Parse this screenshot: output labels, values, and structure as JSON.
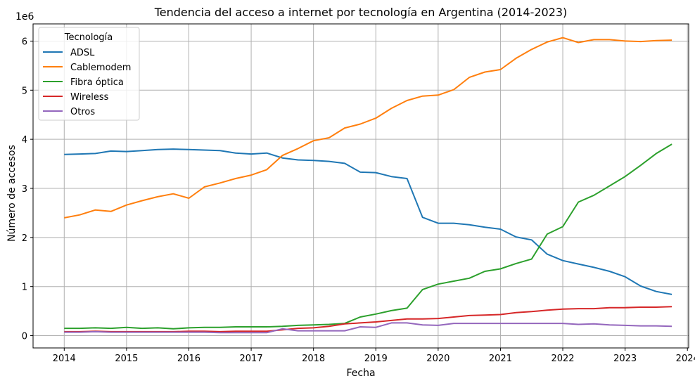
{
  "chart_data": {
    "type": "line",
    "title": "Tendencia del acceso a internet por tecnología en Argentina (2014-2023)",
    "xlabel": "Fecha",
    "ylabel": "Número de accesos",
    "y_offset_text": "1e6",
    "xlim": [
      2013.5,
      2024.02
    ],
    "ylim": [
      -0.25,
      6.35
    ],
    "x_ticks": [
      2014,
      2015,
      2016,
      2017,
      2018,
      2019,
      2020,
      2021,
      2022,
      2023,
      2024
    ],
    "x_tick_labels": [
      "2014",
      "2015",
      "2016",
      "2017",
      "2018",
      "2019",
      "2020",
      "2021",
      "2022",
      "2023",
      "2024"
    ],
    "y_ticks": [
      0,
      1,
      2,
      3,
      4,
      5,
      6
    ],
    "y_tick_labels": [
      "0",
      "1",
      "2",
      "3",
      "4",
      "5",
      "6"
    ],
    "grid": true,
    "legend": {
      "title": "Tecnología",
      "position": "upper-left"
    },
    "x": [
      2014.0,
      2014.25,
      2014.5,
      2014.75,
      2015.0,
      2015.25,
      2015.5,
      2015.75,
      2016.0,
      2016.25,
      2016.5,
      2016.75,
      2017.0,
      2017.25,
      2017.5,
      2017.75,
      2018.0,
      2018.25,
      2018.5,
      2018.75,
      2019.0,
      2019.25,
      2019.5,
      2019.75,
      2020.0,
      2020.25,
      2020.5,
      2020.75,
      2021.0,
      2021.25,
      2021.5,
      2021.75,
      2022.0,
      2022.25,
      2022.5,
      2022.75,
      2023.0,
      2023.25,
      2023.5,
      2023.75
    ],
    "series": [
      {
        "name": "ADSL",
        "color": "#1f77b4",
        "values": [
          3.69,
          3.7,
          3.71,
          3.76,
          3.75,
          3.77,
          3.79,
          3.8,
          3.79,
          3.78,
          3.77,
          3.72,
          3.7,
          3.72,
          3.62,
          3.58,
          3.57,
          3.55,
          3.51,
          3.33,
          3.32,
          3.24,
          3.2,
          2.41,
          2.29,
          2.29,
          2.26,
          2.21,
          2.17,
          2.01,
          1.95,
          1.66,
          1.53,
          1.46,
          1.39,
          1.31,
          1.2,
          1.01,
          0.9,
          0.84
        ]
      },
      {
        "name": "Cablemodem",
        "color": "#ff7f0e",
        "values": [
          2.4,
          2.46,
          2.56,
          2.53,
          2.66,
          2.75,
          2.83,
          2.89,
          2.8,
          3.03,
          3.11,
          3.2,
          3.27,
          3.38,
          3.67,
          3.81,
          3.97,
          4.03,
          4.23,
          4.31,
          4.43,
          4.63,
          4.79,
          4.88,
          4.9,
          5.01,
          5.26,
          5.37,
          5.42,
          5.65,
          5.83,
          5.98,
          6.07,
          5.97,
          6.03,
          6.03,
          6.0,
          5.99,
          6.01,
          6.02
        ]
      },
      {
        "name": "Fibra óptica",
        "color": "#2ca02c",
        "values": [
          0.15,
          0.15,
          0.16,
          0.15,
          0.17,
          0.15,
          0.16,
          0.14,
          0.16,
          0.17,
          0.17,
          0.18,
          0.18,
          0.18,
          0.19,
          0.21,
          0.22,
          0.23,
          0.25,
          0.38,
          0.44,
          0.51,
          0.56,
          0.94,
          1.05,
          1.11,
          1.17,
          1.31,
          1.36,
          1.47,
          1.56,
          2.07,
          2.22,
          2.72,
          2.86,
          3.05,
          3.24,
          3.47,
          3.71,
          3.9
        ]
      },
      {
        "name": "Wireless",
        "color": "#d62728",
        "values": [
          0.08,
          0.08,
          0.09,
          0.08,
          0.08,
          0.08,
          0.08,
          0.08,
          0.09,
          0.09,
          0.08,
          0.09,
          0.09,
          0.09,
          0.12,
          0.15,
          0.16,
          0.19,
          0.24,
          0.26,
          0.28,
          0.31,
          0.34,
          0.34,
          0.35,
          0.38,
          0.41,
          0.42,
          0.43,
          0.47,
          0.49,
          0.52,
          0.54,
          0.55,
          0.55,
          0.57,
          0.57,
          0.58,
          0.58,
          0.59
        ]
      },
      {
        "name": "Otros",
        "color": "#9467bd",
        "values": [
          0.07,
          0.07,
          0.08,
          0.07,
          0.07,
          0.07,
          0.07,
          0.07,
          0.07,
          0.07,
          0.06,
          0.06,
          0.06,
          0.06,
          0.14,
          0.1,
          0.1,
          0.1,
          0.1,
          0.18,
          0.17,
          0.26,
          0.26,
          0.22,
          0.21,
          0.25,
          0.25,
          0.25,
          0.25,
          0.25,
          0.25,
          0.25,
          0.25,
          0.23,
          0.24,
          0.22,
          0.21,
          0.2,
          0.2,
          0.19
        ]
      }
    ]
  }
}
